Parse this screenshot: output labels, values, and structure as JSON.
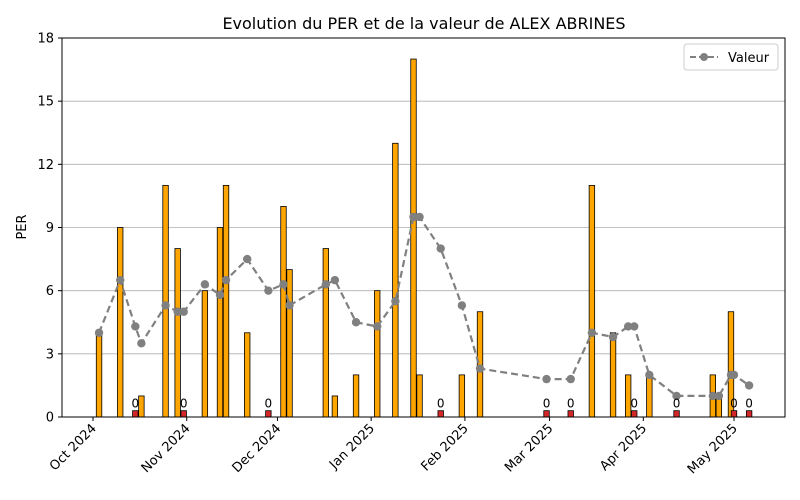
{
  "chart_data": {
    "type": "bar",
    "title": "Evolution du PER et de la valeur de ALEX ABRINES",
    "xlabel": "",
    "ylabel": "PER",
    "ylim": [
      0,
      18
    ],
    "yticks": [
      "0",
      "3",
      "6",
      "9",
      "12",
      "15",
      "18"
    ],
    "xticks": [
      {
        "date": "2024-10-01",
        "label": "Oct 2024"
      },
      {
        "date": "2024-11-01",
        "label": "Nov 2024"
      },
      {
        "date": "2024-12-01",
        "label": "Dec 2024"
      },
      {
        "date": "2025-01-01",
        "label": "Jan 2025"
      },
      {
        "date": "2025-02-01",
        "label": "Feb 2025"
      },
      {
        "date": "2025-03-01",
        "label": "Mar 2025"
      },
      {
        "date": "2025-04-01",
        "label": "Apr 2025"
      },
      {
        "date": "2025-05-01",
        "label": "May 2025"
      }
    ],
    "grid": "horizontal",
    "legend_position": "top-right",
    "colors": {
      "bar": "#ffa500",
      "bar_zero": "#d62728",
      "bar_edge": "#000000",
      "line": "#808080",
      "grid": "#b0b0b0"
    },
    "bars": [
      {
        "date": "2024-10-03",
        "per": 4
      },
      {
        "date": "2024-10-10",
        "per": 9
      },
      {
        "date": "2024-10-15",
        "per": 0,
        "label": "0"
      },
      {
        "date": "2024-10-17",
        "per": 1
      },
      {
        "date": "2024-10-25",
        "per": 11
      },
      {
        "date": "2024-10-29",
        "per": 8
      },
      {
        "date": "2024-10-31",
        "per": 0,
        "label": "0"
      },
      {
        "date": "2024-11-07",
        "per": 6
      },
      {
        "date": "2024-11-12",
        "per": 9
      },
      {
        "date": "2024-11-14",
        "per": 11
      },
      {
        "date": "2024-11-21",
        "per": 4
      },
      {
        "date": "2024-11-28",
        "per": 0,
        "label": "0"
      },
      {
        "date": "2024-12-03",
        "per": 10
      },
      {
        "date": "2024-12-05",
        "per": 7
      },
      {
        "date": "2024-12-17",
        "per": 8
      },
      {
        "date": "2024-12-20",
        "per": 1
      },
      {
        "date": "2024-12-27",
        "per": 2
      },
      {
        "date": "2025-01-03",
        "per": 6
      },
      {
        "date": "2025-01-09",
        "per": 13
      },
      {
        "date": "2025-01-15",
        "per": 17
      },
      {
        "date": "2025-01-17",
        "per": 2
      },
      {
        "date": "2025-01-24",
        "per": 0,
        "label": "0"
      },
      {
        "date": "2025-01-31",
        "per": 2
      },
      {
        "date": "2025-02-06",
        "per": 5
      },
      {
        "date": "2025-02-28",
        "per": 0,
        "label": "0"
      },
      {
        "date": "2025-03-08",
        "per": 0,
        "label": "0"
      },
      {
        "date": "2025-03-15",
        "per": 11
      },
      {
        "date": "2025-03-22",
        "per": 4
      },
      {
        "date": "2025-03-27",
        "per": 2
      },
      {
        "date": "2025-03-29",
        "per": 0,
        "label": "0"
      },
      {
        "date": "2025-04-03",
        "per": 2
      },
      {
        "date": "2025-04-12",
        "per": 0,
        "label": "0"
      },
      {
        "date": "2025-04-24",
        "per": 2
      },
      {
        "date": "2025-04-26",
        "per": 1
      },
      {
        "date": "2025-04-30",
        "per": 5
      },
      {
        "date": "2025-05-01",
        "per": 0,
        "label": "0"
      },
      {
        "date": "2025-05-06",
        "per": 0,
        "label": "0"
      }
    ],
    "series": [
      {
        "name": "Valeur",
        "type": "line",
        "style": "dashed",
        "marker": "circle",
        "points": [
          {
            "date": "2024-10-03",
            "value": 4.0
          },
          {
            "date": "2024-10-10",
            "value": 6.5
          },
          {
            "date": "2024-10-15",
            "value": 4.3
          },
          {
            "date": "2024-10-17",
            "value": 3.5
          },
          {
            "date": "2024-10-25",
            "value": 5.3
          },
          {
            "date": "2024-10-29",
            "value": 5.0
          },
          {
            "date": "2024-10-31",
            "value": 5.0
          },
          {
            "date": "2024-11-07",
            "value": 6.3
          },
          {
            "date": "2024-11-12",
            "value": 5.8
          },
          {
            "date": "2024-11-14",
            "value": 6.5
          },
          {
            "date": "2024-11-21",
            "value": 7.5
          },
          {
            "date": "2024-11-28",
            "value": 6.0
          },
          {
            "date": "2024-12-03",
            "value": 6.3
          },
          {
            "date": "2024-12-05",
            "value": 5.3
          },
          {
            "date": "2024-12-17",
            "value": 6.3
          },
          {
            "date": "2024-12-20",
            "value": 6.5
          },
          {
            "date": "2024-12-27",
            "value": 4.5
          },
          {
            "date": "2025-01-03",
            "value": 4.3
          },
          {
            "date": "2025-01-09",
            "value": 5.5
          },
          {
            "date": "2025-01-15",
            "value": 9.5
          },
          {
            "date": "2025-01-17",
            "value": 9.5
          },
          {
            "date": "2025-01-24",
            "value": 8.0
          },
          {
            "date": "2025-01-31",
            "value": 5.3
          },
          {
            "date": "2025-02-06",
            "value": 2.3
          },
          {
            "date": "2025-02-28",
            "value": 1.8
          },
          {
            "date": "2025-03-08",
            "value": 1.8
          },
          {
            "date": "2025-03-15",
            "value": 4.0
          },
          {
            "date": "2025-03-22",
            "value": 3.8
          },
          {
            "date": "2025-03-27",
            "value": 4.3
          },
          {
            "date": "2025-03-29",
            "value": 4.3
          },
          {
            "date": "2025-04-03",
            "value": 2.0
          },
          {
            "date": "2025-04-12",
            "value": 1.0
          },
          {
            "date": "2025-04-24",
            "value": 1.0
          },
          {
            "date": "2025-04-26",
            "value": 1.0
          },
          {
            "date": "2025-04-30",
            "value": 2.0
          },
          {
            "date": "2025-05-01",
            "value": 2.0
          },
          {
            "date": "2025-05-06",
            "value": 1.5
          }
        ]
      }
    ]
  }
}
